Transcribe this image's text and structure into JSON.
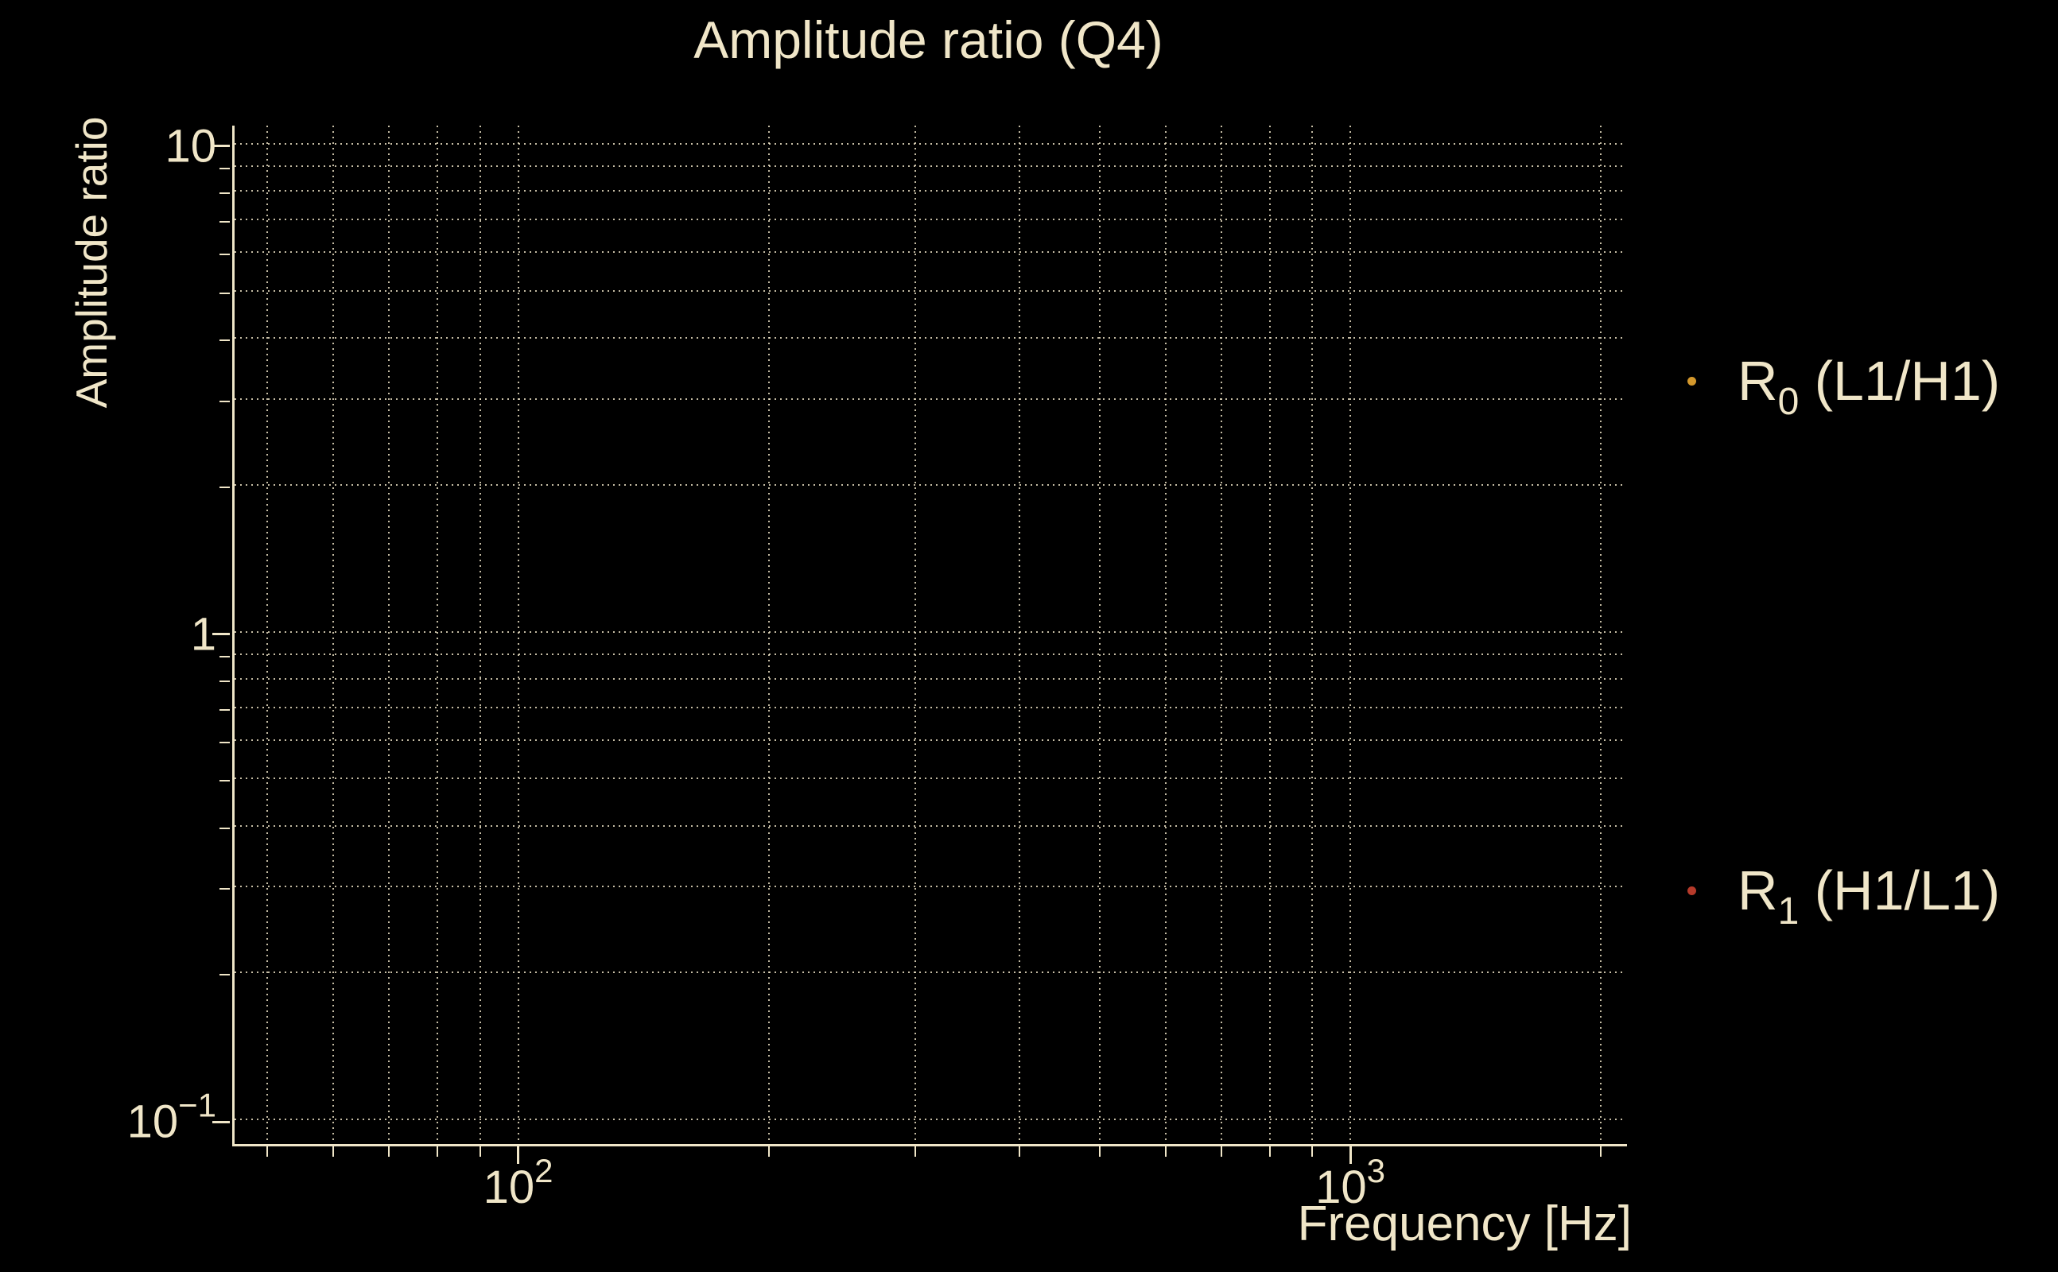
{
  "title": {
    "text": "Amplitude ratio (Q4)"
  },
  "colors": {
    "background": "#000000",
    "foreground": "#f0e6c8",
    "grid": "#f0e6c8",
    "series_r0": "#d4982c",
    "series_r1": "#b63a2a"
  },
  "axes": {
    "x": {
      "label": "Frequency [Hz]",
      "scale": "log",
      "range_hz": [
        45,
        2130
      ],
      "major_ticks": [
        {
          "value": 100,
          "base": "10",
          "exp": "2"
        },
        {
          "value": 1000,
          "base": "10",
          "exp": "3"
        }
      ],
      "minor_ticks": [
        50,
        60,
        70,
        80,
        90,
        200,
        300,
        400,
        500,
        600,
        700,
        800,
        900,
        2000
      ]
    },
    "y": {
      "label": "Amplitude ratio",
      "scale": "log",
      "range": [
        0.089,
        11
      ],
      "major_ticks": [
        {
          "value": 10,
          "label": "10",
          "base": "",
          "exp": ""
        },
        {
          "value": 1,
          "label": "1",
          "base": "",
          "exp": ""
        },
        {
          "value": 0.1,
          "label": "",
          "base": "10",
          "exp": "−1"
        }
      ],
      "minor_ticks": [
        9,
        8,
        7,
        6,
        5,
        4,
        3,
        2,
        0.9,
        0.8,
        0.7,
        0.6,
        0.5,
        0.4,
        0.3,
        0.2
      ]
    }
  },
  "legend": {
    "entries": [
      {
        "main": "R",
        "sub": "0",
        "rest": " (L1/H1)",
        "marker_color": "#d4982c"
      },
      {
        "main": "R",
        "sub": "1",
        "rest": " (H1/L1)",
        "marker_color": "#b63a2a"
      }
    ]
  },
  "chart_data": {
    "type": "scatter",
    "title": "Amplitude ratio (Q4)",
    "xlabel": "Frequency [Hz]",
    "ylabel": "Amplitude ratio",
    "xscale": "log",
    "yscale": "log",
    "xlim": [
      45,
      2130
    ],
    "ylim": [
      0.089,
      11
    ],
    "grid": true,
    "grid_style": "dotted",
    "x_major_ticks": [
      100,
      1000
    ],
    "y_major_ticks": [
      10,
      1,
      0.1
    ],
    "legend_position": "outside-right",
    "series": [
      {
        "name": "R0 (L1/H1)",
        "marker_color": "#d4982c",
        "marker": "dot",
        "x": [],
        "y": []
      },
      {
        "name": "R1 (H1/L1)",
        "marker_color": "#b63a2a",
        "marker": "dot",
        "x": [],
        "y": []
      }
    ],
    "visible_points": "none — plot area shows only gridlines; both series have no visible data points"
  }
}
